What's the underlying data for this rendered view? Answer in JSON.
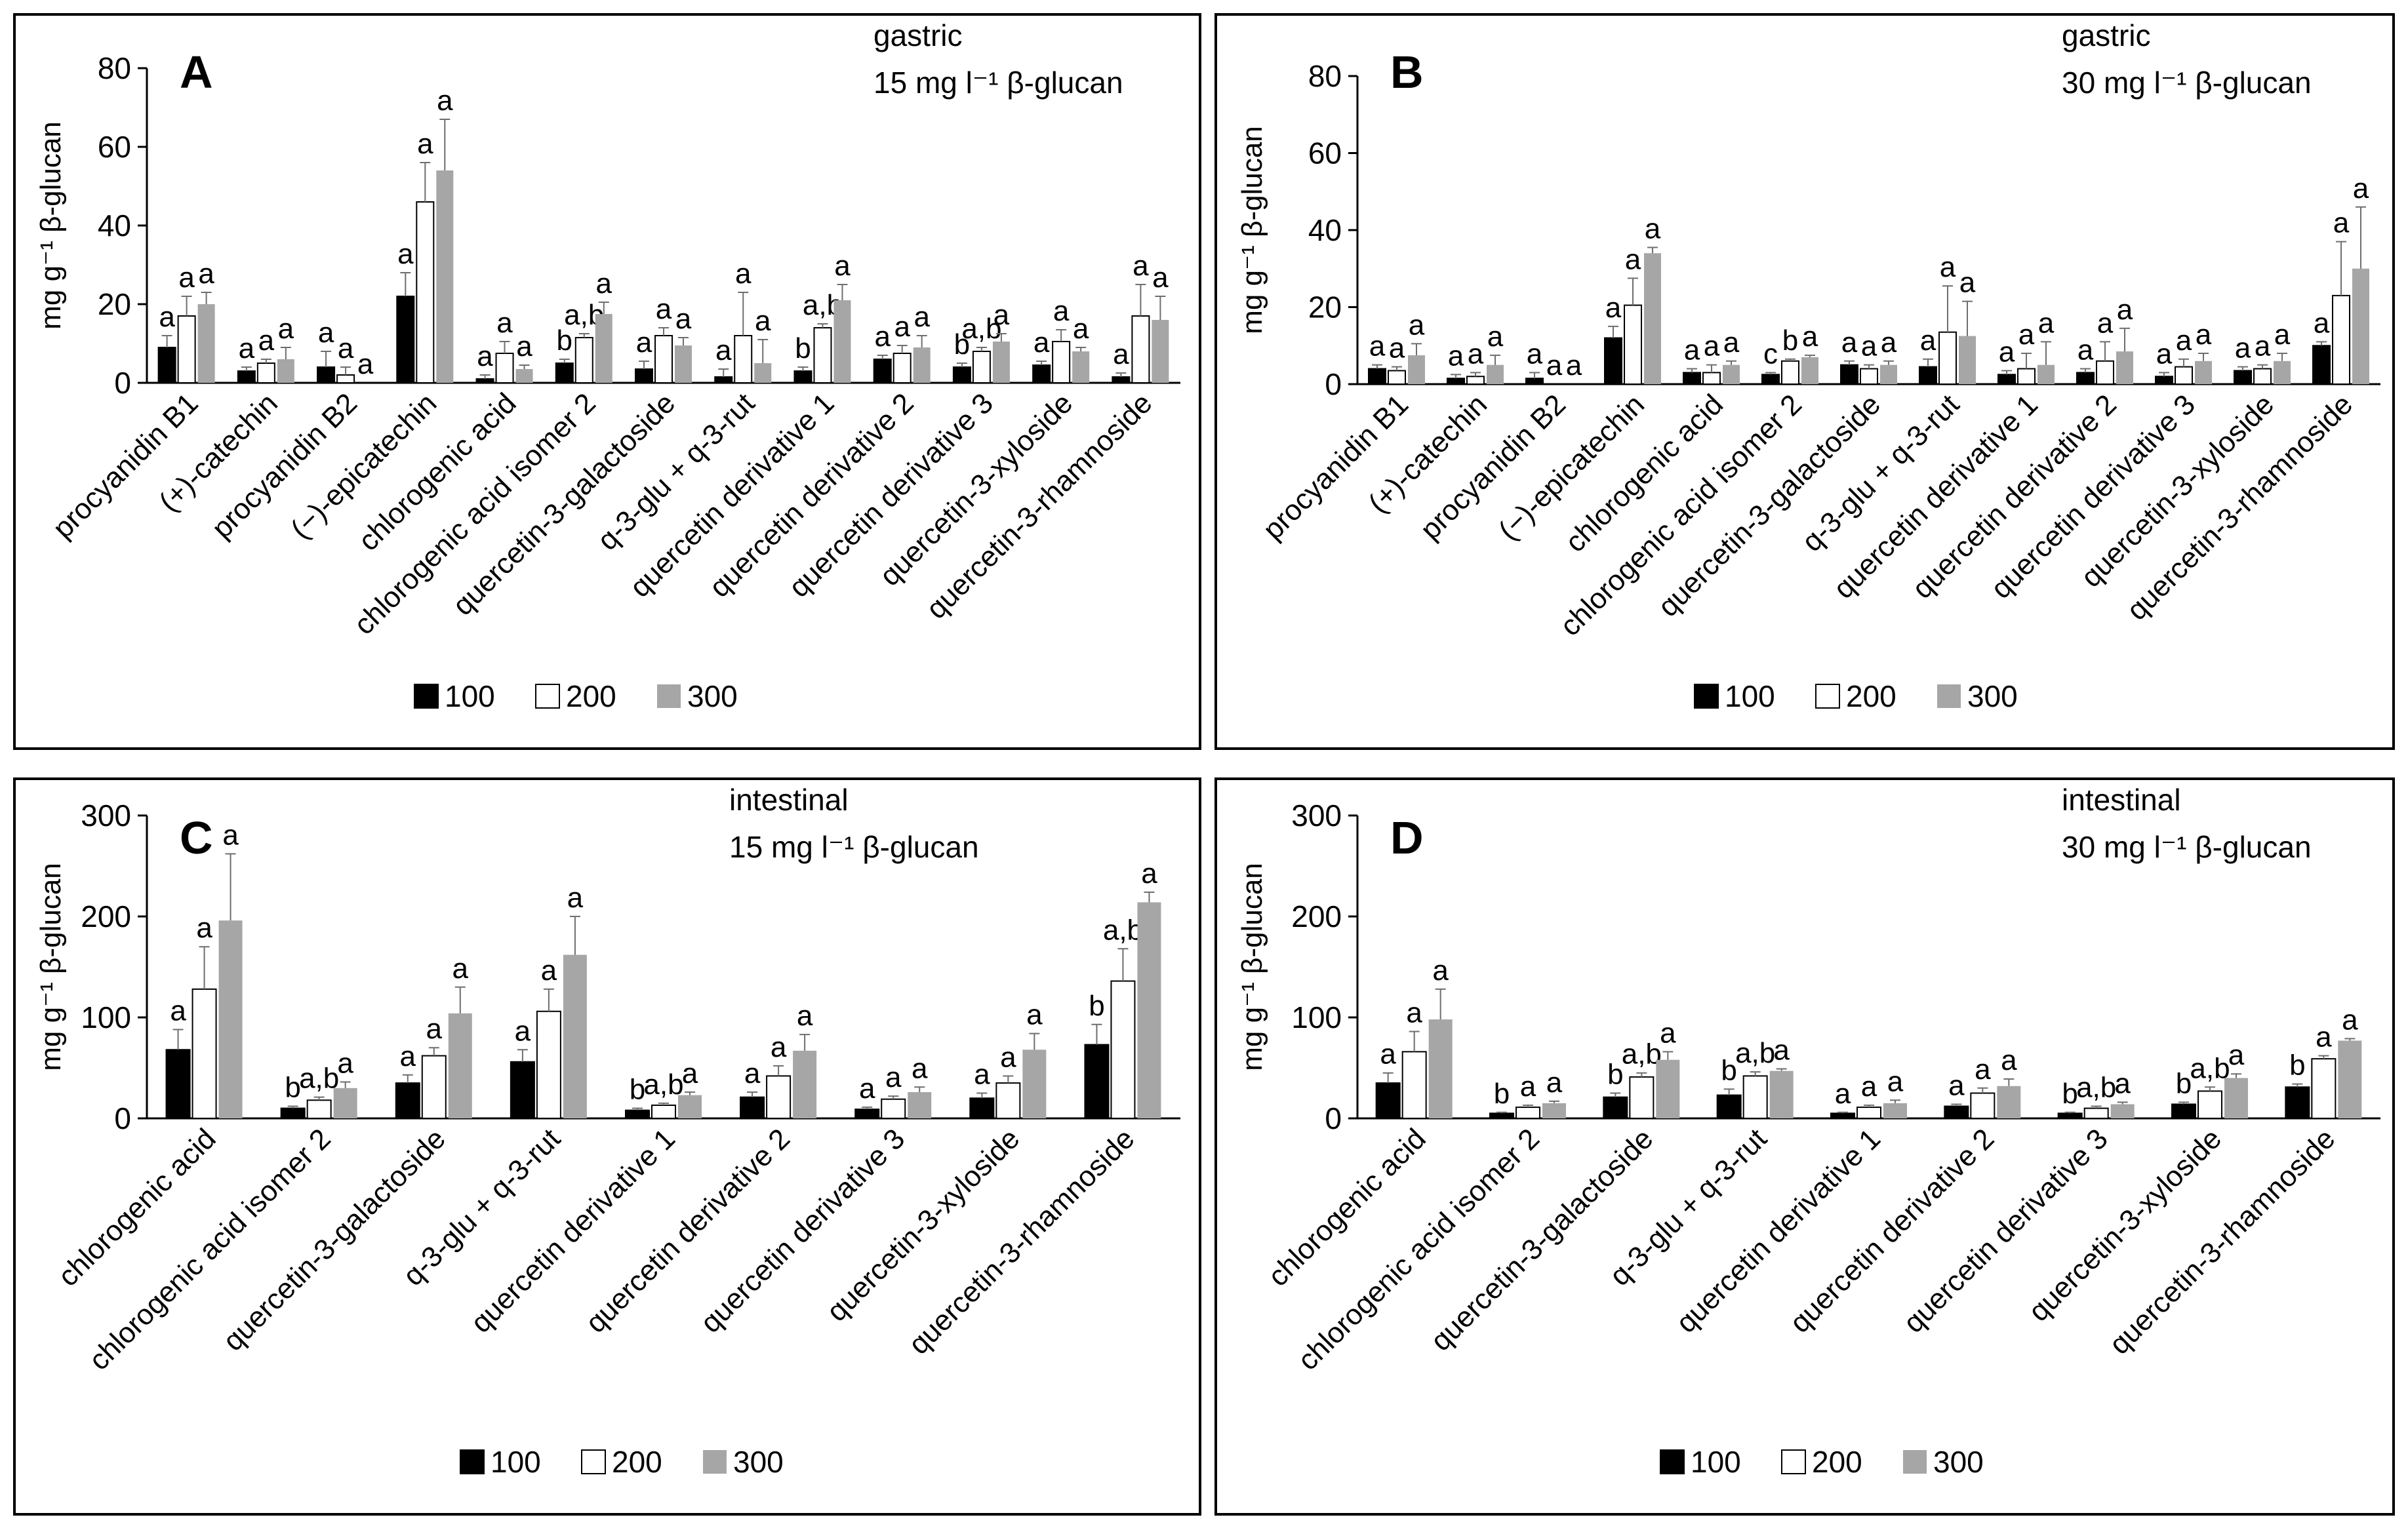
{
  "legend": {
    "labels": [
      "100",
      "200",
      "300"
    ]
  },
  "colors": {
    "s100": "#000000",
    "s200": "#ffffff",
    "s300": "#a6a6a6",
    "frame": "#000000"
  },
  "chart_data": [
    {
      "type": "bar",
      "panel_letter": "A",
      "note_line1": "gastric",
      "note_line2": "15 mg l⁻¹ β-glucan",
      "ylabel": "mg g⁻¹ β-glucan",
      "ylim": [
        0,
        80
      ],
      "yticks": [
        "0",
        "20",
        "40",
        "60",
        "80"
      ],
      "grid": false,
      "legend_position": "bottom",
      "categories": [
        "procyanidin B1",
        "(+)-catechin",
        "procyanidin B2",
        "(−)-epicatechin",
        "chlorogenic acid",
        "chlorogenic acid isomer 2",
        "quercetin-3-galactoside",
        "q-3-glu + q-3-rut",
        "quercetin derivative 1",
        "quercetin derivative 2",
        "quercetin derivative 3",
        "quercetin-3-xyloside",
        "quercetin-3-rhamnoside"
      ],
      "series": [
        {
          "name": "100",
          "values": [
            9,
            3,
            4,
            22,
            1,
            5,
            3.5,
            1.5,
            3,
            6,
            4,
            4.5,
            1.5
          ],
          "errors": [
            3,
            1,
            4,
            6,
            1,
            1,
            2,
            2,
            1,
            1,
            1,
            1,
            1
          ],
          "letters": [
            "a",
            "a",
            "a",
            "a",
            "a",
            "b",
            "a",
            "a",
            "b",
            "a",
            "b",
            "a",
            "a"
          ]
        },
        {
          "name": "200",
          "values": [
            17,
            5,
            2,
            46,
            7.5,
            11.5,
            12,
            12,
            14,
            7.5,
            8,
            10.5,
            17
          ],
          "errors": [
            5,
            1,
            2,
            10,
            3,
            1,
            2,
            11,
            1,
            2,
            1,
            3,
            8
          ],
          "letters": [
            "a",
            "a",
            "a",
            "a",
            "a",
            "a,b",
            "a",
            "a",
            "a,b",
            "a",
            "a,b",
            "a",
            "a"
          ]
        },
        {
          "name": "300",
          "values": [
            20,
            6,
            0,
            54,
            3.5,
            17.5,
            9.5,
            5,
            21,
            9,
            10.5,
            8,
            16
          ],
          "errors": [
            3,
            3,
            0,
            13,
            1,
            3,
            2,
            6,
            4,
            3,
            2,
            1,
            6
          ],
          "letters": [
            "a",
            "a",
            "a",
            "a",
            "a",
            "a",
            "a",
            "a",
            "a",
            "a",
            "a",
            "a",
            "a"
          ]
        }
      ]
    },
    {
      "type": "bar",
      "panel_letter": "B",
      "note_line1": "gastric",
      "note_line2": "30 mg l⁻¹ β-glucan",
      "ylabel": "mg g⁻¹ β-glucan",
      "ylim": [
        0,
        80
      ],
      "yticks": [
        "0",
        "20",
        "40",
        "60",
        "80"
      ],
      "grid": false,
      "legend_position": "bottom",
      "categories": [
        "procyanidin B1",
        "(+)-catechin",
        "procyanidin B2",
        "(−)-epicatechin",
        "chlorogenic acid",
        "chlorogenic acid isomer 2",
        "quercetin-3-galactoside",
        "q-3-glu + q-3-rut",
        "quercetin derivative 1",
        "quercetin derivative 2",
        "quercetin derivative 3",
        "quercetin-3-xyloside",
        "quercetin-3-rhamnoside"
      ],
      "series": [
        {
          "name": "100",
          "values": [
            4,
            1.5,
            1.5,
            12,
            3,
            2.5,
            5,
            4.5,
            2.5,
            3,
            2,
            3.5,
            10
          ],
          "errors": [
            1,
            1,
            1.5,
            3,
            1,
            0.5,
            1,
            2,
            1,
            1,
            1,
            1,
            1
          ],
          "letters": [
            "a",
            "a",
            "a",
            "a",
            "a",
            "c",
            "a",
            "a",
            "a",
            "a",
            "a",
            "a",
            "a"
          ]
        },
        {
          "name": "200",
          "values": [
            3.5,
            2,
            0,
            20.5,
            3,
            6,
            4,
            13.5,
            4,
            6,
            4.5,
            4,
            23
          ],
          "errors": [
            1,
            1,
            0,
            7,
            2,
            0.5,
            1,
            12,
            4,
            5,
            2,
            1,
            14
          ],
          "letters": [
            "a",
            "a",
            "a",
            "a",
            "a",
            "b",
            "a",
            "a",
            "a",
            "a",
            "a",
            "a",
            "a"
          ]
        },
        {
          "name": "300",
          "values": [
            7.5,
            5,
            0,
            34,
            5,
            7,
            5,
            12.5,
            5,
            8.5,
            6,
            6,
            30
          ],
          "errors": [
            3,
            2.5,
            0,
            1.5,
            1,
            0.5,
            1,
            9,
            6,
            6,
            2,
            2,
            16
          ],
          "letters": [
            "a",
            "a",
            "a",
            "a",
            "a",
            "a",
            "a",
            "a",
            "a",
            "a",
            "a",
            "a",
            "a"
          ]
        }
      ]
    },
    {
      "type": "bar",
      "panel_letter": "C",
      "note_line1": "intestinal",
      "note_line2": "15 mg l⁻¹ β-glucan",
      "ylabel": "mg g⁻¹ β-glucan",
      "ylim": [
        0,
        300
      ],
      "yticks": [
        "0",
        "100",
        "200",
        "300"
      ],
      "grid": false,
      "legend_position": "bottom",
      "categories": [
        "chlorogenic acid",
        "chlorogenic acid isomer 2",
        "quercetin-3-galactoside",
        "q-3-glu + q-3-rut",
        "quercetin derivative 1",
        "quercetin derivative 2",
        "quercetin derivative 3",
        "quercetin-3-xyloside",
        "quercetin-3-rhamnoside"
      ],
      "series": [
        {
          "name": "100",
          "values": [
            68,
            10,
            35,
            56,
            8,
            21,
            9,
            20,
            73
          ],
          "errors": [
            20,
            2,
            8,
            12,
            2,
            5,
            2,
            5,
            20
          ],
          "letters": [
            "a",
            "b",
            "a",
            "a",
            "b",
            "a",
            "a",
            "a",
            "b"
          ]
        },
        {
          "name": "200",
          "values": [
            128,
            18,
            62,
            106,
            13,
            42,
            19,
            35,
            136
          ],
          "errors": [
            42,
            3,
            8,
            22,
            2,
            10,
            3,
            7,
            32
          ],
          "letters": [
            "a",
            "a,b",
            "a",
            "a",
            "a,b",
            "a",
            "a",
            "a",
            "a,b"
          ]
        },
        {
          "name": "300",
          "values": [
            196,
            30,
            104,
            162,
            23,
            67,
            26,
            68,
            214
          ],
          "errors": [
            66,
            6,
            26,
            38,
            3,
            16,
            5,
            16,
            10
          ],
          "letters": [
            "a",
            "a",
            "a",
            "a",
            "a",
            "a",
            "a",
            "a",
            "a"
          ]
        }
      ]
    },
    {
      "type": "bar",
      "panel_letter": "D",
      "note_line1": "intestinal",
      "note_line2": "30 mg l⁻¹ β-glucan",
      "ylabel": "mg g⁻¹ β-glucan",
      "ylim": [
        0,
        300
      ],
      "yticks": [
        "0",
        "100",
        "200",
        "300"
      ],
      "grid": false,
      "legend_position": "bottom",
      "categories": [
        "chlorogenic acid",
        "chlorogenic acid isomer 2",
        "quercetin-3-galactoside",
        "q-3-glu + q-3-rut",
        "quercetin derivative 1",
        "quercetin derivative 2",
        "quercetin derivative 3",
        "quercetin-3-xyloside",
        "quercetin-3-rhamnoside"
      ],
      "series": [
        {
          "name": "100",
          "values": [
            35,
            5,
            21,
            23,
            5,
            12,
            5,
            14,
            31
          ],
          "errors": [
            10,
            1,
            4,
            6,
            1,
            2,
            1,
            2,
            3
          ],
          "letters": [
            "a",
            "b",
            "b",
            "b",
            "a",
            "a",
            "b",
            "b",
            "b"
          ]
        },
        {
          "name": "200",
          "values": [
            66,
            11,
            41,
            42,
            11,
            25,
            10,
            27,
            59
          ],
          "errors": [
            20,
            2,
            4,
            4,
            2,
            5,
            2,
            4,
            3
          ],
          "letters": [
            "a",
            "a",
            "a,b",
            "a,b",
            "a",
            "a",
            "a,b",
            "a,b",
            "a"
          ]
        },
        {
          "name": "300",
          "values": [
            98,
            15,
            58,
            47,
            15,
            32,
            14,
            40,
            77
          ],
          "errors": [
            30,
            2,
            8,
            2,
            3,
            7,
            2,
            4,
            2
          ],
          "letters": [
            "a",
            "a",
            "a",
            "a",
            "a",
            "a",
            "a",
            "a",
            "a"
          ]
        }
      ]
    }
  ]
}
